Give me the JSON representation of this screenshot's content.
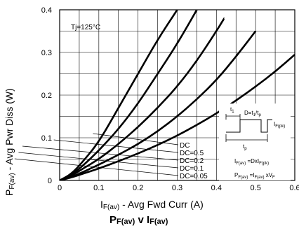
{
  "chart_data": {
    "type": "line",
    "title": "",
    "caption": {
      "main_1": "P",
      "sub_1": "F(av)",
      "mid": " v I",
      "sub_2": "F(av)"
    },
    "xlabel": {
      "pre": "I",
      "sub": "F(av)",
      "post": " - Avg Fwd Curr (A)"
    },
    "ylabel": {
      "pre": "P",
      "sub": "F(av)",
      "post": " - Avg Pwr Diss (W)"
    },
    "xlim": [
      0,
      0.6
    ],
    "ylim": [
      0,
      0.4
    ],
    "x_ticks": [
      "0",
      "0.1",
      "0.2",
      "0.3",
      "0.4",
      "0.5",
      "0.6"
    ],
    "y_ticks": [
      "0",
      "0.1",
      "0.2",
      "0.3",
      "0.4"
    ],
    "grid": true,
    "annotation": "Tj=125°C",
    "series": [
      {
        "name": "DC=0.05",
        "x": [
          0,
          0.03,
          0.06,
          0.1,
          0.15,
          0.2,
          0.25,
          0.3
        ],
        "y": [
          0,
          0.015,
          0.045,
          0.09,
          0.17,
          0.25,
          0.33,
          0.4
        ]
      },
      {
        "name": "DC=0.1",
        "x": [
          0,
          0.03,
          0.06,
          0.1,
          0.15,
          0.2,
          0.25,
          0.3,
          0.35
        ],
        "y": [
          0,
          0.013,
          0.035,
          0.07,
          0.12,
          0.18,
          0.25,
          0.32,
          0.4
        ]
      },
      {
        "name": "DC=0.2",
        "x": [
          0,
          0.03,
          0.06,
          0.1,
          0.15,
          0.2,
          0.25,
          0.3,
          0.35,
          0.4,
          0.42
        ],
        "y": [
          0,
          0.011,
          0.028,
          0.05,
          0.085,
          0.125,
          0.17,
          0.22,
          0.28,
          0.35,
          0.38
        ]
      },
      {
        "name": "DC=0.5",
        "x": [
          0,
          0.03,
          0.06,
          0.1,
          0.15,
          0.2,
          0.25,
          0.3,
          0.35,
          0.4,
          0.45,
          0.5
        ],
        "y": [
          0,
          0.008,
          0.02,
          0.037,
          0.06,
          0.085,
          0.115,
          0.15,
          0.19,
          0.235,
          0.29,
          0.35
        ]
      },
      {
        "name": "DC",
        "x": [
          0,
          0.03,
          0.06,
          0.1,
          0.15,
          0.2,
          0.25,
          0.3,
          0.35,
          0.4,
          0.45,
          0.5,
          0.55,
          0.6
        ],
        "y": [
          0,
          0.007,
          0.016,
          0.028,
          0.045,
          0.063,
          0.083,
          0.105,
          0.13,
          0.157,
          0.187,
          0.22,
          0.255,
          0.295
        ]
      }
    ],
    "legend": [
      "DC",
      "DC=0.5",
      "DC=0.2",
      "DC=0.1",
      "DC=0.05"
    ],
    "inset": {
      "t1": "t",
      "t1_sub": "1",
      "eq1": "D=t",
      "eq1_sub": "1",
      "eq1_mid": "/t",
      "eq1_sub2": "p",
      "ipk": "I",
      "ipk_sub": "F(pk)",
      "tp": "t",
      "tp_sub": "p",
      "eq2_a": "I",
      "eq2_a_sub": "F(av)",
      "eq2_b": " =DxI",
      "eq2_b_sub": "F(pk)",
      "eq3_a": "P",
      "eq3_a_sub": "F(av)",
      "eq3_b": " =I",
      "eq3_b_sub": "F(av)",
      "eq3_c": " xV",
      "eq3_c_sub": "F"
    }
  }
}
